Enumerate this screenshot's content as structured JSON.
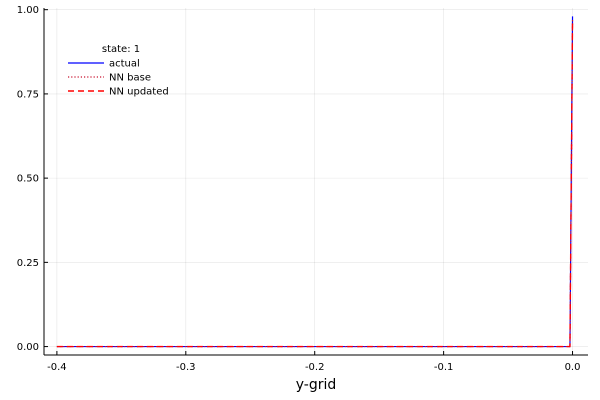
{
  "chart_data": {
    "type": "line",
    "title": "",
    "xlabel": "y-grid",
    "ylabel": "",
    "xlim": [
      -0.41,
      0.012
    ],
    "ylim": [
      -0.025,
      1.005
    ],
    "xticks": [
      -0.4,
      -0.3,
      -0.2,
      -0.1,
      0.0
    ],
    "xtick_labels": [
      "-0.4",
      "-0.3",
      "-0.2",
      "-0.1",
      "0.0"
    ],
    "yticks": [
      0.0,
      0.25,
      0.5,
      0.75,
      1.0
    ],
    "ytick_labels": [
      "0.00",
      "0.25",
      "0.50",
      "0.75",
      "1.00"
    ],
    "grid": true,
    "legend": {
      "title": "state: 1",
      "position": "top-left"
    },
    "series": [
      {
        "name": "actual",
        "color": "#0000ff",
        "style": "solid",
        "x": [
          -0.4,
          -0.3,
          -0.2,
          -0.1,
          -0.002,
          0.0
        ],
        "y": [
          0.0,
          0.0,
          0.0,
          0.0,
          0.0,
          0.98
        ]
      },
      {
        "name": "NN base",
        "color": "#c8102e",
        "style": "dotted",
        "x": [
          -0.4,
          -0.3,
          -0.2,
          -0.1,
          -0.002,
          0.0
        ],
        "y": [
          0.0,
          0.0,
          0.0,
          0.0,
          0.0,
          0.97
        ]
      },
      {
        "name": "NN updated",
        "color": "#ff0000",
        "style": "dashed",
        "x": [
          -0.4,
          -0.3,
          -0.2,
          -0.1,
          -0.002,
          0.0
        ],
        "y": [
          0.0,
          0.0,
          0.0,
          0.0,
          0.0,
          0.97
        ]
      }
    ]
  }
}
